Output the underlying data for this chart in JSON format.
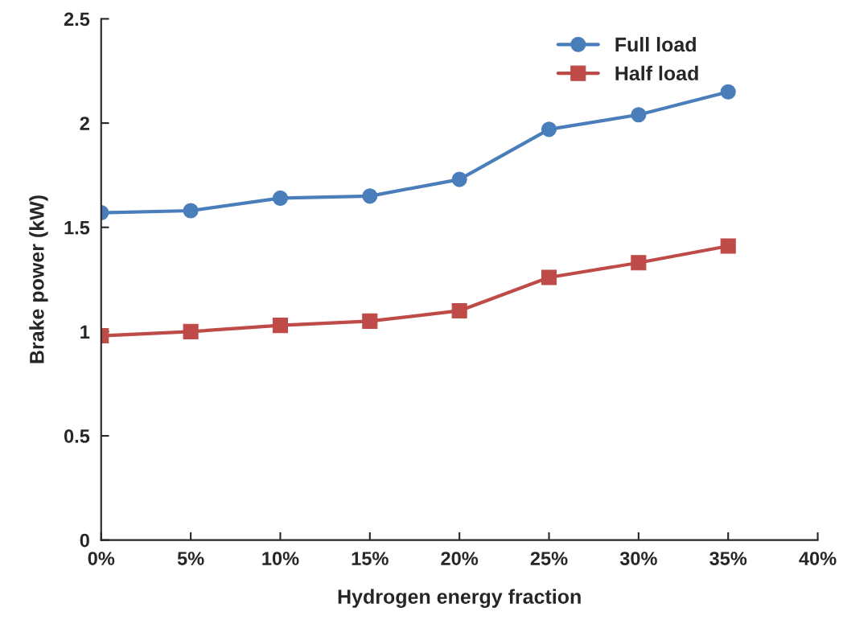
{
  "chart_data": {
    "type": "line",
    "xlabel": "Hydrogen energy fraction",
    "ylabel": "Brake power (kW)",
    "x": [
      0,
      5,
      10,
      15,
      20,
      25,
      30,
      35
    ],
    "series": [
      {
        "name": "Full load",
        "color": "#4a7ebb",
        "marker": "circle",
        "values": [
          1.57,
          1.58,
          1.64,
          1.65,
          1.73,
          1.97,
          2.04,
          2.15
        ]
      },
      {
        "name": "Half load",
        "color": "#be4b48",
        "marker": "square",
        "values": [
          0.98,
          1.0,
          1.03,
          1.05,
          1.1,
          1.26,
          1.33,
          1.41
        ]
      }
    ],
    "xlim": [
      0,
      40
    ],
    "xticks": [
      {
        "value": 0,
        "label": "0%"
      },
      {
        "value": 5,
        "label": "5%"
      },
      {
        "value": 10,
        "label": "10%"
      },
      {
        "value": 15,
        "label": "15%"
      },
      {
        "value": 20,
        "label": "20%"
      },
      {
        "value": 25,
        "label": "25%"
      },
      {
        "value": 30,
        "label": "30%"
      },
      {
        "value": 35,
        "label": "35%"
      },
      {
        "value": 40,
        "label": "40%"
      }
    ],
    "ylim": [
      0,
      2.5
    ],
    "yticks": [
      0,
      0.5,
      1,
      1.5,
      2,
      2.5
    ],
    "grid": false,
    "legend": "top right",
    "line_style": "solid"
  }
}
